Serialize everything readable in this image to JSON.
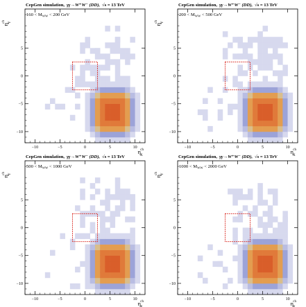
{
  "figure": {
    "header": {
      "left": "CepGen simulation,",
      "process": "γγ→W⁺W⁻ (DD),",
      "energy_prefix": "√",
      "energy": "s = 13 TeV"
    },
    "colors": {
      "bin_lowest": "#d7d9ee",
      "bin_low": "#b9bde2",
      "bin_mid_low": "#9ca3d8",
      "bin_mid": "#d9be8c",
      "bin_mid_high": "#e39d50",
      "bin_high": "#e07a3a",
      "bin_peak": "#d95e2a",
      "box": "#d9251d"
    }
  },
  "chart_data": [
    {
      "type": "heatmap",
      "title": "CepGen simulation, γγ→W⁺W⁻ (DD), √s = 13 TeV",
      "range_label": "160 < M",
      "range_sub": "WW",
      "range_tail": " < 200 GeV",
      "xlabel": "η",
      "xlabel_sup": "ch",
      "xlabel_sub": "X",
      "ylabel": "η",
      "ylabel_sup": "ch",
      "ylabel_sub": "Y",
      "xlim": [
        -12,
        12
      ],
      "ylim": [
        -12,
        12
      ],
      "x_ticks": [
        "−10",
        "−5",
        "0",
        "5",
        "10"
      ],
      "y_ticks": [
        "−10",
        "−5",
        "0",
        "5"
      ],
      "peak": {
        "x": 5.5,
        "y": -6.5,
        "halfwidth": 5
      },
      "box": {
        "x": [
          -2.5,
          2.5
        ],
        "y": [
          -2.5,
          2.5
        ]
      },
      "sparse_count": 40,
      "seed": 11
    },
    {
      "type": "heatmap",
      "title": "CepGen simulation, γγ→W⁺W⁻ (DD), √s = 13 TeV",
      "range_label": "200 < M",
      "range_sub": "WW",
      "range_tail": " < 500 GeV",
      "xlabel": "η",
      "xlabel_sup": "ch",
      "xlabel_sub": "X",
      "ylabel": "η",
      "ylabel_sup": "ch",
      "ylabel_sub": "Y",
      "xlim": [
        -12,
        12
      ],
      "ylim": [
        -12,
        12
      ],
      "x_ticks": [
        "−10",
        "−5",
        "0",
        "5",
        "10"
      ],
      "y_ticks": [
        "−10",
        "−5",
        "0",
        "5"
      ],
      "peak": {
        "x": 5.5,
        "y": -6.5,
        "halfwidth": 5
      },
      "box": {
        "x": [
          -2.5,
          2.5
        ],
        "y": [
          -2.5,
          2.5
        ]
      },
      "sparse_count": 50,
      "seed": 23
    },
    {
      "type": "heatmap",
      "title": "CepGen simulation, γγ→W⁺W⁻ (DD), √s = 13 TeV",
      "range_label": "500 < M",
      "range_sub": "WW",
      "range_tail": " < 1000 GeV",
      "xlabel": "η",
      "xlabel_sup": "ch",
      "xlabel_sub": "X",
      "ylabel": "η",
      "ylabel_sup": "ch",
      "ylabel_sub": "Y",
      "xlim": [
        -12,
        12
      ],
      "ylim": [
        -12,
        12
      ],
      "x_ticks": [
        "−10",
        "−5",
        "0",
        "5",
        "10"
      ],
      "y_ticks": [
        "−10",
        "−5",
        "0",
        "5"
      ],
      "peak": {
        "x": 5.5,
        "y": -6.5,
        "halfwidth": 5
      },
      "box": {
        "x": [
          -2.5,
          2.5
        ],
        "y": [
          -2.5,
          2.5
        ]
      },
      "sparse_count": 45,
      "seed": 37
    },
    {
      "type": "heatmap",
      "title": "CepGen simulation, γγ→W⁺W⁻ (DD), √s = 13 TeV",
      "range_label": "1000 < M",
      "range_sub": "WW",
      "range_tail": " < 2000 GeV",
      "xlabel": "η",
      "xlabel_sup": "ch",
      "xlabel_sub": "X",
      "ylabel": "η",
      "ylabel_sup": "ch",
      "ylabel_sub": "Y",
      "xlim": [
        -12,
        12
      ],
      "ylim": [
        -12,
        12
      ],
      "x_ticks": [
        "−10",
        "−5",
        "0",
        "5",
        "10"
      ],
      "y_ticks": [
        "−10",
        "−5",
        "0",
        "5"
      ],
      "peak": {
        "x": 5.5,
        "y": -6.5,
        "halfwidth": 5
      },
      "box": {
        "x": [
          -2.5,
          2.5
        ],
        "y": [
          -2.5,
          2.5
        ]
      },
      "sparse_count": 35,
      "seed": 53
    }
  ]
}
